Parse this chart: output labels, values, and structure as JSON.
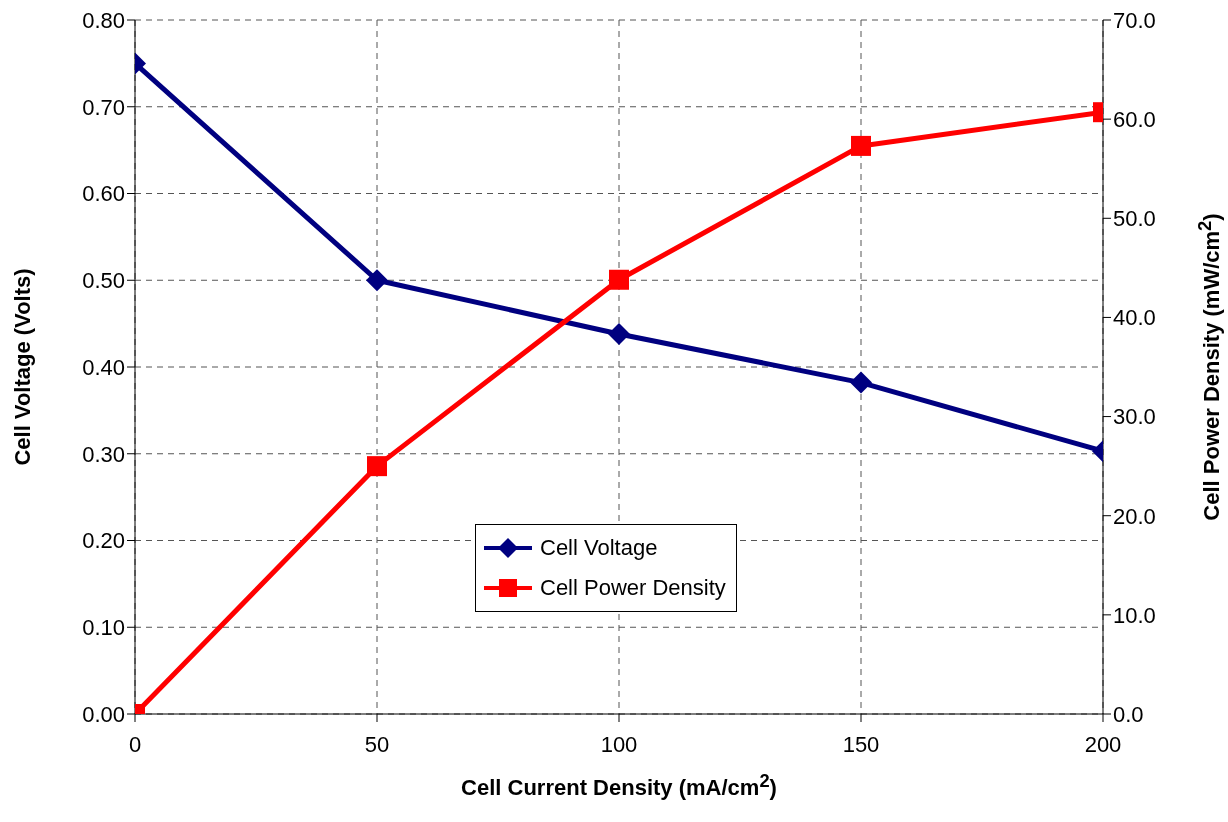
{
  "chart_data": {
    "type": "line",
    "xlabel": "Cell Current Density (mA/cm$^{2}$)",
    "ylabel": "Cell Voltage (Volts)",
    "y2label": "Cell Power Density (mW/cm$^{2}$)",
    "x": [
      0,
      50,
      100,
      150,
      200
    ],
    "series": [
      {
        "name": "Cell Voltage",
        "color": "#000080",
        "marker": "diamond",
        "values": [
          0.75,
          0.5,
          0.438,
          0.382,
          0.303
        ]
      },
      {
        "name": "Cell Power Density",
        "color": "#ff0000",
        "marker": "square",
        "axis": "y2",
        "values": [
          0,
          25.0,
          43.8,
          57.3,
          60.7
        ]
      }
    ],
    "xlim": [
      0,
      200
    ],
    "xticks": [
      0,
      50,
      100,
      150,
      200
    ],
    "ylim": [
      0,
      0.8
    ],
    "yticks": [
      {
        "value": 0,
        "label": "0.00"
      },
      {
        "value": 0.1,
        "label": "0.10"
      },
      {
        "value": 0.2,
        "label": "0.20"
      },
      {
        "value": 0.3,
        "label": "0.30"
      },
      {
        "value": 0.4,
        "label": "0.40"
      },
      {
        "value": 0.5,
        "label": "0.50"
      },
      {
        "value": 0.6,
        "label": "0.60"
      },
      {
        "value": 0.7,
        "label": "0.70"
      },
      {
        "value": 0.8,
        "label": "0.80"
      }
    ],
    "y2lim": [
      0,
      70
    ],
    "y2ticks": [
      {
        "value": 0,
        "label": "0.0"
      },
      {
        "value": 10,
        "label": "10.0"
      },
      {
        "value": 20,
        "label": "20.0"
      },
      {
        "value": 30,
        "label": "30.0"
      },
      {
        "value": 40,
        "label": "40.0"
      },
      {
        "value": 50,
        "label": "50.0"
      },
      {
        "value": 60,
        "label": "60.0"
      },
      {
        "value": 70,
        "label": "70.0"
      }
    ],
    "grid": true,
    "line_style": "solid",
    "legend": "center"
  }
}
